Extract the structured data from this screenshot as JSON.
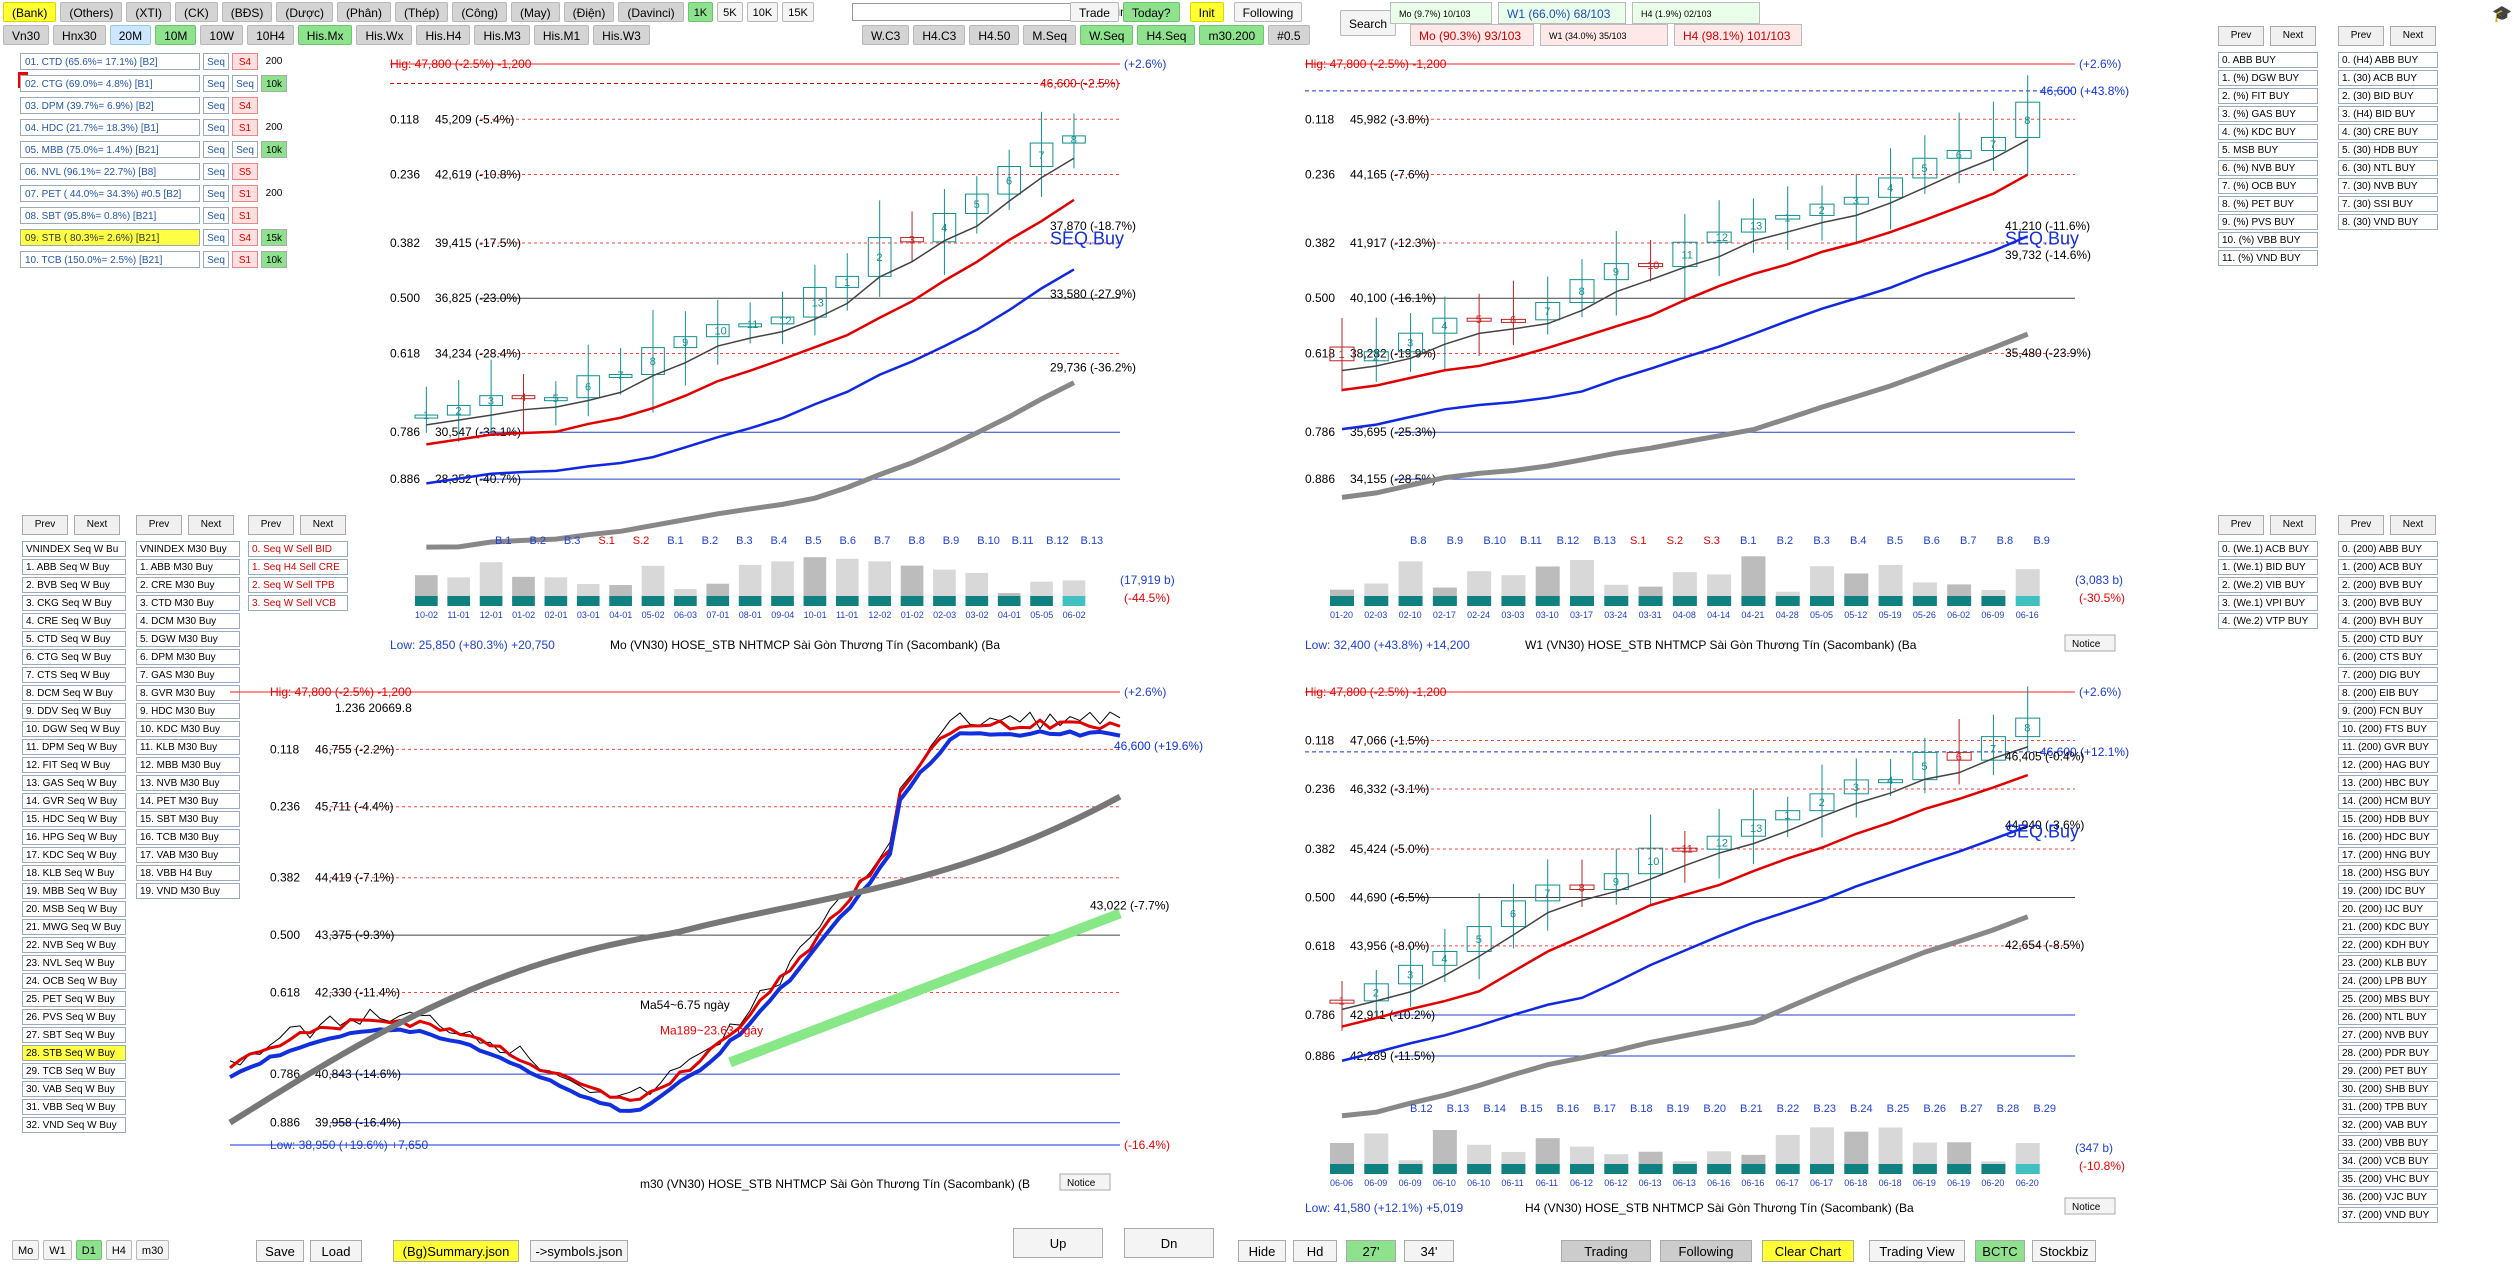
{
  "top_row1": [
    "(Bank)",
    "(Others)",
    "(XTI)",
    "(CK)",
    "(BĐS)",
    "(Dược)",
    "(Phân)",
    "(Thép)",
    "(Công)",
    "(May)",
    "(Điện)",
    "(Davinci)",
    "1K",
    "5K",
    "10K",
    "15K"
  ],
  "top_row2": [
    "Vn30",
    "Hnx30",
    "20M",
    "10M",
    "10W",
    "10H4",
    "His.Mx",
    "His.Wx",
    "His.H4",
    "His.M3",
    "His.M1",
    "His.W3"
  ],
  "find_label": "Find",
  "tools1": [
    "Trade",
    "Today?",
    "Init",
    "Following"
  ],
  "tools2": [
    "W.C3",
    "H4.C3",
    "H4.50",
    "M.Seq",
    "W.Seq",
    "H4.Seq",
    "m30.200",
    "#0.5"
  ],
  "search_label": "Search",
  "stats": {
    "a": "Mo (9.7%) 10/103",
    "b": "W1 (66.0%) 68/103",
    "c": "H4 (1.9%) 02/103",
    "d": "Mo (90.3%) 93/103",
    "e": "W1 (34.0%) 35/103",
    "f": "H4 (98.1%) 101/103"
  },
  "stocks": [
    {
      "label": "01. CTD (65.6%= 17.1%) [B2]",
      "seq": "Seq",
      "sig": "S4",
      "ext": "200",
      "ext_style": "n"
    },
    {
      "label": "02. CTG (69.0%= 4.8%) [B1]",
      "seq": "Seq",
      "sig": "Seq",
      "ext": "10k",
      "ext_style": "g"
    },
    {
      "label": "03. DPM (39.7%= 6.9%) [B2]",
      "seq": "Seq",
      "sig": "S4",
      "ext": "",
      "ext_style": "n"
    },
    {
      "label": "04. HDC (21.7%= 18.3%) [B1]",
      "seq": "Seq",
      "sig": "S1",
      "ext": "200",
      "ext_style": "n"
    },
    {
      "label": "05. MBB (75.0%= 1.4%) [B21]",
      "seq": "Seq",
      "sig": "Seq",
      "ext": "10k",
      "ext_style": "g"
    },
    {
      "label": "06. NVL (96.1%= 22.7%) [B8]",
      "seq": "Seq",
      "sig": "S5",
      "ext": "",
      "ext_style": "n"
    },
    {
      "label": "07. PET ( 44.0%= 34.3%) #0.5 [B2]",
      "seq": "Seq",
      "sig": "S1",
      "ext": "200",
      "ext_style": "n"
    },
    {
      "label": "08. SBT (95.8%= 0.8%) [B21]",
      "seq": "Seq",
      "sig": "S1",
      "ext": "",
      "ext_style": "n"
    },
    {
      "label": "09. STB ( 80.3%= 2.6%) [B21]",
      "seq": "Seq",
      "sig": "S4",
      "ext": "15k",
      "ext_style": "g",
      "hl": true
    },
    {
      "label": "10. TCB (150.0%= 2.5%) [B21]",
      "seq": "Seq",
      "sig": "S1",
      "ext": "10k",
      "ext_style": "g"
    }
  ],
  "nav": {
    "prev": "Prev",
    "next": "Next"
  },
  "list_vn_seq": [
    "VNINDEX Seq W Bu",
    "1. ABB Seq W Buy",
    "2. BVB Seq W Buy",
    "3. CKG Seq W Buy",
    "4. CRE Seq W Buy",
    "5. CTD Seq W Buy",
    "6. CTG Seq W Buy",
    "7. CTS Seq W Buy",
    "8. DCM Seq W Buy",
    "9. DDV Seq W Buy",
    "10. DGW Seq W Buy",
    "11. DPM Seq W Buy",
    "12. FIT Seq W Buy",
    "13. GAS Seq W Buy",
    "14. GVR Seq W Buy",
    "15. HDC Seq W Buy",
    "16. HPG Seq W Buy",
    "17. KDC Seq W Buy",
    "18. KLB Seq W Buy",
    "19. MBB Seq W Buy",
    "20. MSB Seq W Buy",
    "21. MWG Seq W Buy",
    "22. NVB Seq W Buy",
    "23. NVL Seq W Buy",
    "24. OCB Seq W Buy",
    "25. PET Seq W Buy",
    "26. PVS Seq W Buy",
    "27. SBT Seq W Buy",
    "28. STB Seq W Buy",
    "29. TCB Seq W Buy",
    "30. VAB Seq W Buy",
    "31. VBB Seq W Buy",
    "32. VND Seq W Buy"
  ],
  "list_m30": [
    "VNINDEX M30 Buy",
    "1. ABB M30 Buy",
    "2. CRE M30 Buy",
    "3. CTD M30 Buy",
    "4. DCM M30 Buy",
    "5. DGW M30 Buy",
    "6. DPM M30 Buy",
    "7. GAS M30 Buy",
    "8. GVR M30 Buy",
    "9. HDC M30 Buy",
    "10. KDC M30 Buy",
    "11. KLB M30 Buy",
    "12. MBB M30 Buy",
    "13. NVB M30 Buy",
    "14. PET M30 Buy",
    "15. SBT M30 Buy",
    "16. TCB M30 Buy",
    "17. VAB M30 Buy",
    "18. VBB H4 Buy",
    "19. VND M30 Buy"
  ],
  "list_sell": [
    "0. Seq W Sell BID",
    "1. Seq H4 Sell CRE",
    "2. Seq W Sell TPB",
    "3. Seq W Sell VCB"
  ],
  "list_h4_buy": [
    "0. ABB BUY",
    "1. (%) DGW BUY",
    "2. (%) FIT BUY",
    "3. (%) GAS BUY",
    "4. (%) KDC BUY",
    "5. MSB BUY",
    "6. (%) NVB BUY",
    "7. (%) OCB BUY",
    "8. (%) PET BUY",
    "9. (%) PVS BUY",
    "10. (%) VBB BUY",
    "11. (%) VND BUY"
  ],
  "list_30_buy": [
    "0. (H4) ABB BUY",
    "1. (30) ACB BUY",
    "2. (30) BID BUY",
    "3. (H4) BID BUY",
    "4. (30) CRE BUY",
    "5. (30) HDB BUY",
    "6. (30) NTL BUY",
    "7. (30) NVB BUY",
    "7. (30) SSI BUY",
    "8. (30) VND BUY"
  ],
  "list_we_buy": [
    "0. (We.1) ACB BUY",
    "1. (We.1) BID BUY",
    "2. (We.2) VIB BUY",
    "3. (We.1) VPI BUY",
    "4. (We.2) VTP BUY"
  ],
  "list_200_buy": [
    "0. (200) ABB BUY",
    "1. (200) ACB BUY",
    "2. (200) BVB BUY",
    "3. (200) BVB BUY",
    "4. (200) BVH BUY",
    "5. (200) CTD BUY",
    "6. (200) CTS BUY",
    "7. (200) DIG BUY",
    "8. (200) EIB BUY",
    "9. (200) FCN BUY",
    "10. (200) FTS BUY",
    "11. (200) GVR BUY",
    "12. (200) HAG BUY",
    "13. (200) HBC BUY",
    "14. (200) HCM BUY",
    "15. (200) HDB BUY",
    "16. (200) HDC BUY",
    "17. (200) HNG BUY",
    "18. (200) HSG BUY",
    "19. (200) IDC BUY",
    "20. (200) IJC BUY",
    "21. (200) KDC BUY",
    "22. (200) KDH BUY",
    "23. (200) KLB BUY",
    "24. (200) LPB BUY",
    "25. (200) MBS BUY",
    "26. (200) NTL BUY",
    "27. (200) NVB BUY",
    "28. (200) PDR BUY",
    "29. (200) PET BUY",
    "30. (200) SHB BUY",
    "31. (200) TPB BUY",
    "32. (200) VAB BUY",
    "33. (200) VBB BUY",
    "34. (200) VCB BUY",
    "35. (200) VHC BUY",
    "36. (200) VJC BUY",
    "37. (200) VND BUY"
  ],
  "charts": {
    "mo": {
      "high": "Hig: 47,800 (-2.5%) -1,200",
      "low": "Low: 25,850 (+80.3%) +20,750",
      "caption": "Mo     (VN30) HOSE_STB NHTMCP Sài Gòn Thương Tín (Sacombank) (Ba",
      "top_pct": "(+2.6%)",
      "price": "46,600 (-2.5%)",
      "bottom_pct": "(-44.5%)",
      "vol": "(17,919 b)",
      "seq_label": "SEQ.Buy",
      "levels": [
        {
          "r": "0.118",
          "v": "45,209 (-5.4%)"
        },
        {
          "r": "0.236",
          "v": "42,619 (-10.8%)"
        },
        {
          "r": "0.382",
          "v": "39,415 (-17.5%)"
        },
        {
          "r": "0.500",
          "v": "36,825 (-23.0%)"
        },
        {
          "r": "0.618",
          "v": "34,234 (-28.4%)"
        },
        {
          "r": "0.786",
          "v": "30,547 (-36.1%)"
        },
        {
          "r": "0.886",
          "v": "28,352 (-40.7%)"
        }
      ],
      "ma_labels": [
        "37,870 (-18.7%)",
        "33,580 (-27.9%)",
        "29,736 (-36.2%)"
      ],
      "xlabels": [
        "10-02",
        "11-01",
        "12-01",
        "01-02",
        "02-01",
        "03-01",
        "04-01",
        "05-02",
        "06-03",
        "07-01",
        "08-01",
        "09-04",
        "10-01",
        "11-01",
        "12-02",
        "01-02",
        "02-03",
        "03-02",
        "04-01",
        "05-05",
        "06-02"
      ],
      "btags": [
        "B.1",
        "B.2",
        "B.3",
        "S.1",
        "S.2",
        "B.1",
        "B.2",
        "B.3",
        "B.4",
        "B.5",
        "B.6",
        "B.7",
        "B.8",
        "B.9",
        "B.10",
        "B.11",
        "B.12",
        "B.13"
      ]
    },
    "w1": {
      "high": "Hig: 47,800 (-2.5%) -1,200",
      "low": "Low: 32,400 (+43.8%) +14,200",
      "caption": "W1     (VN30) HOSE_STB NHTMCP Sài Gòn Thương Tín (Sacombank) (Ba",
      "top_pct": "(+2.6%)",
      "price": "46,600 (+43.8%)",
      "bottom_pct": "(-30.5%)",
      "vol": "(3,083 b)",
      "seq_label": "SEQ.Buy",
      "notice": "Notice",
      "levels": [
        {
          "r": "0.118",
          "v": "45,982 (-3.8%)"
        },
        {
          "r": "0.236",
          "v": "44,165 (-7.6%)"
        },
        {
          "r": "0.382",
          "v": "41,917 (-12.3%)"
        },
        {
          "r": "0.500",
          "v": "40,100 (-16.1%)"
        },
        {
          "r": "0.618",
          "v": "38,282 (-19.9%)"
        },
        {
          "r": "0.786",
          "v": "35,695 (-25.3%)"
        },
        {
          "r": "0.886",
          "v": "34,155 (-28.5%)"
        }
      ],
      "ma_labels": [
        "41,210 (-11.6%)",
        "39,732 (-14.6%)",
        "35,480 (-23.9%)"
      ],
      "xlabels": [
        "01-20",
        "02-03",
        "02-10",
        "02-17",
        "02-24",
        "03-03",
        "03-10",
        "03-17",
        "03-24",
        "03-31",
        "04-08",
        "04-14",
        "04-21",
        "04-28",
        "05-05",
        "05-12",
        "05-19",
        "05-26",
        "06-02",
        "06-09",
        "06-16"
      ],
      "btags": [
        "B.8",
        "B.9",
        "B.10",
        "B.11",
        "B.12",
        "B.13",
        "S.1",
        "S.2",
        "S.3",
        "B.1",
        "B.2",
        "B.3",
        "B.4",
        "B.5",
        "B.6",
        "B.7",
        "B.8",
        "B.9"
      ]
    },
    "m30": {
      "high": "Hig: 47,800 (-2.5%) -1,200",
      "low": "Low: 38,950 (+19.6%) +7,650",
      "caption": "m30     (VN30) HOSE_STB NHTMCP Sài Gòn Thương Tín (Sacombank) (B",
      "top_pct": "(+2.6%)",
      "price": "46,600 (+19.6%)",
      "bottom_pct": "(-16.4%)",
      "notice": "Notice",
      "l1236": "1.236   20669.8",
      "levels": [
        {
          "r": "0.118",
          "v": "46,755 (-2.2%)"
        },
        {
          "r": "0.236",
          "v": "45,711 (-4.4%)"
        },
        {
          "r": "0.382",
          "v": "44,419 (-7.1%)"
        },
        {
          "r": "0.500",
          "v": "43,375 (-9.3%)"
        },
        {
          "r": "0.618",
          "v": "42,330 (-11.4%)"
        },
        {
          "r": "0.786",
          "v": "40,843 (-14.6%)"
        },
        {
          "r": "0.886",
          "v": "39,958 (-16.4%)"
        }
      ],
      "ma189": "Ma189~23.63 ngày",
      "ma54": "Ma54~6.75 ngày",
      "ma_right": "43,022 (-7.7%)"
    },
    "h4": {
      "high": "Hig: 47,800 (-2.5%) -1,200",
      "low": "Low: 41,580 (+12.1%) +5,019",
      "caption": "H4     (VN30) HOSE_STB NHTMCP Sài Gòn Thương Tín (Sacombank) (Ba",
      "top_pct": "(+2.6%)",
      "price": "46,600 (+12.1%)",
      "bottom_pct": "(-10.8%)",
      "vol": "(347 b)",
      "seq_label": "SEQ.Buy",
      "notice": "Notice",
      "l1236": "1.236   28765.6",
      "levels": [
        {
          "r": "0.118",
          "v": "47,066 (-1.5%)"
        },
        {
          "r": "0.236",
          "v": "46,332 (-3.1%)"
        },
        {
          "r": "0.382",
          "v": "45,424 (-5.0%)"
        },
        {
          "r": "0.500",
          "v": "44,690 (-6.5%)"
        },
        {
          "r": "0.618",
          "v": "43,956 (-8.0%)"
        },
        {
          "r": "0.786",
          "v": "42,911 (-10.2%)"
        },
        {
          "r": "0.886",
          "v": "42,289 (-11.5%)"
        }
      ],
      "ma_labels": [
        "46,405 (-0.4%)",
        "44,940 (-3.6%)",
        "42,654 (-8.5%)"
      ],
      "xlabels": [
        "06-06",
        "06-09",
        "06-09",
        "06-10",
        "06-10",
        "06-11",
        "06-11",
        "06-12",
        "06-12",
        "06-13",
        "06-13",
        "06-16",
        "06-16",
        "06-17",
        "06-17",
        "06-18",
        "06-18",
        "06-19",
        "06-19",
        "06-20",
        "06-20"
      ],
      "btags": [
        "B.12",
        "B.13",
        "B.14",
        "B.15",
        "B.16",
        "B.17",
        "B.18",
        "B.19",
        "B.20",
        "B.21",
        "B.22",
        "B.23",
        "B.24",
        "B.25",
        "B.26",
        "B.27",
        "B.28",
        "B.29"
      ]
    }
  },
  "bottom": {
    "tf": [
      "Mo",
      "W1",
      "D1",
      "H4",
      "m30"
    ],
    "save": "Save",
    "load": "Load",
    "summary": "(Bg)Summary.json",
    "symbols": "->symbols.json",
    "up": "Up",
    "dn": "Dn",
    "hide": "Hide",
    "hd": "Hd",
    "t27": "27'",
    "t34": "34'",
    "trading": "Trading",
    "following": "Following",
    "clear": "Clear Chart",
    "trading_view": "Trading View",
    "bctc": "BCTC",
    "stockbiz": "Stockbiz"
  }
}
